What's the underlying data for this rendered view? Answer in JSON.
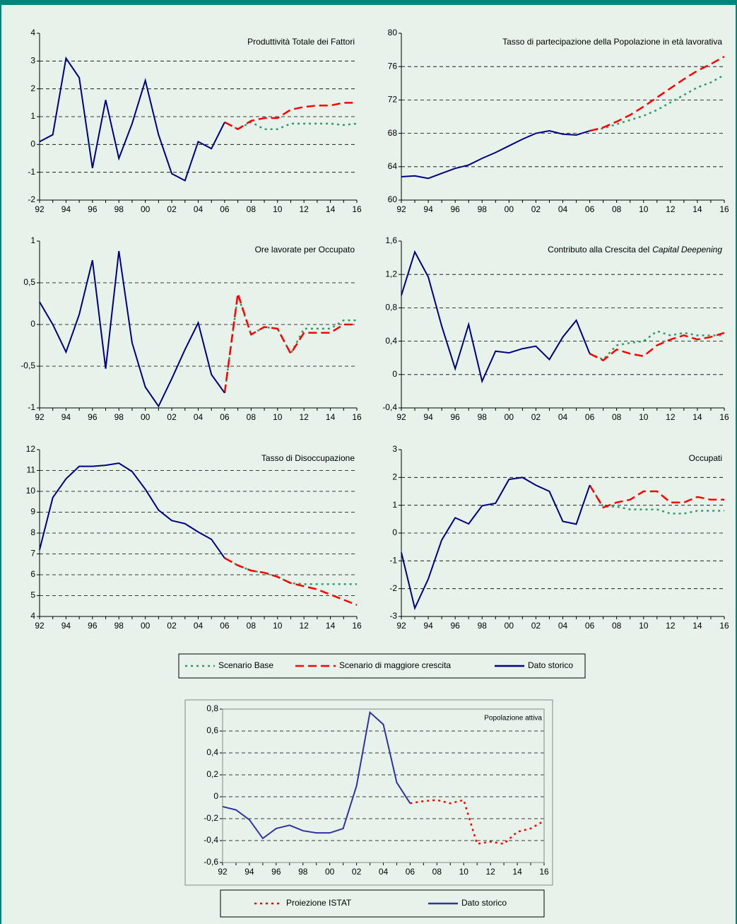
{
  "chart_data": [
    {
      "type": "line",
      "title": "Produttività Totale dei Fattori",
      "categories": [
        "92",
        null,
        "94",
        null,
        "96",
        null,
        "98",
        null,
        "00",
        null,
        "02",
        null,
        "04",
        null,
        "06",
        null,
        "08",
        null,
        "10",
        null,
        "12",
        null,
        "14",
        null,
        "16"
      ],
      "ylim": [
        -2,
        4
      ],
      "yticks": [
        -2,
        -1,
        0,
        1,
        2,
        3,
        4
      ],
      "grid": true,
      "series": [
        {
          "name": "Scenario Base",
          "color": "#339966",
          "dash": "dotted",
          "values": [
            null,
            null,
            null,
            null,
            null,
            null,
            null,
            null,
            null,
            null,
            null,
            null,
            null,
            null,
            0.8,
            0.55,
            0.8,
            0.55,
            0.55,
            0.75,
            0.75,
            0.75,
            0.75,
            0.7,
            0.75
          ]
        },
        {
          "name": "Scenario di maggiore crescita",
          "color": "#ff0000",
          "dash": "dashed",
          "values": [
            null,
            null,
            null,
            null,
            null,
            null,
            null,
            null,
            null,
            null,
            null,
            null,
            null,
            null,
            0.8,
            0.55,
            0.85,
            0.95,
            0.95,
            1.25,
            1.35,
            1.4,
            1.4,
            1.5,
            1.5
          ]
        },
        {
          "name": "Dato storico",
          "color": "#000080",
          "dash": "solid",
          "values": [
            0.1,
            0.35,
            3.1,
            2.4,
            -0.85,
            1.6,
            -0.5,
            0.75,
            2.3,
            0.35,
            -1.05,
            -1.3,
            0.1,
            -0.15,
            0.8,
            null,
            null,
            null,
            null,
            null,
            null,
            null,
            null,
            null,
            null
          ]
        }
      ]
    },
    {
      "type": "line",
      "title": "Tasso di partecipazione della Popolazione in età lavorativa",
      "categories": [
        "92",
        null,
        "94",
        null,
        "96",
        null,
        "98",
        null,
        "00",
        null,
        "02",
        null,
        "04",
        null,
        "06",
        null,
        "08",
        null,
        "10",
        null,
        "12",
        null,
        "14",
        null,
        "16"
      ],
      "ylim": [
        60,
        80
      ],
      "yticks": [
        60,
        64,
        68,
        72,
        76,
        80
      ],
      "grid": true,
      "series": [
        {
          "name": "Scenario Base",
          "color": "#339966",
          "dash": "dotted",
          "values": [
            null,
            null,
            null,
            null,
            null,
            null,
            null,
            null,
            null,
            null,
            null,
            null,
            null,
            null,
            68.3,
            68.6,
            69.1,
            69.6,
            70.1,
            70.8,
            71.7,
            72.6,
            73.5,
            74.1,
            75.0
          ]
        },
        {
          "name": "Scenario di maggiore crescita",
          "color": "#ff0000",
          "dash": "dashed",
          "values": [
            null,
            null,
            null,
            null,
            null,
            null,
            null,
            null,
            null,
            null,
            null,
            null,
            null,
            null,
            68.3,
            68.7,
            69.4,
            70.2,
            71.2,
            72.3,
            73.4,
            74.5,
            75.5,
            76.3,
            77.2
          ]
        },
        {
          "name": "Dato storico",
          "color": "#000080",
          "dash": "solid",
          "values": [
            62.8,
            62.9,
            62.6,
            63.2,
            63.8,
            64.2,
            65.0,
            65.7,
            66.5,
            67.3,
            68.0,
            68.3,
            67.9,
            67.8,
            68.3,
            null,
            null,
            null,
            null,
            null,
            null,
            null,
            null,
            null,
            null
          ]
        }
      ]
    },
    {
      "type": "line",
      "title": "Ore lavorate per Occupato",
      "categories": [
        "92",
        null,
        "94",
        null,
        "96",
        null,
        "98",
        null,
        "00",
        null,
        "02",
        null,
        "04",
        null,
        "06",
        null,
        "08",
        null,
        "10",
        null,
        "12",
        null,
        "14",
        null,
        "16"
      ],
      "ylim": [
        -1,
        1
      ],
      "yticks": [
        -1,
        {
          "value": -0.5,
          "label": "-0,5"
        },
        0,
        {
          "value": 0.5,
          "label": "0,5"
        },
        1
      ],
      "grid": true,
      "series": [
        {
          "name": "Scenario Base",
          "color": "#339966",
          "dash": "dotted",
          "values": [
            null,
            null,
            null,
            null,
            null,
            null,
            null,
            null,
            null,
            null,
            null,
            null,
            null,
            null,
            -0.82,
            0.35,
            -0.12,
            -0.03,
            -0.05,
            -0.35,
            -0.05,
            -0.05,
            -0.05,
            0.05,
            0.05
          ]
        },
        {
          "name": "Scenario di maggiore crescita",
          "color": "#ff0000",
          "dash": "dashed",
          "values": [
            null,
            null,
            null,
            null,
            null,
            null,
            null,
            null,
            null,
            null,
            null,
            null,
            null,
            null,
            -0.82,
            0.37,
            -0.12,
            -0.03,
            -0.05,
            -0.35,
            -0.1,
            -0.1,
            -0.1,
            0,
            0
          ]
        },
        {
          "name": "Dato storico",
          "color": "#000080",
          "dash": "solid",
          "values": [
            0.27,
            0,
            -0.33,
            0.12,
            0.77,
            -0.53,
            0.88,
            -0.22,
            -0.75,
            -0.98,
            -0.65,
            -0.3,
            0.02,
            -0.6,
            -0.82,
            null,
            null,
            null,
            null,
            null,
            null,
            null,
            null,
            null,
            null
          ]
        }
      ]
    },
    {
      "type": "line",
      "title_parts": [
        {
          "text": "Contributo alla Crescita del"
        },
        {
          "text": "Capital Deepening",
          "italic": true
        }
      ],
      "categories": [
        "92",
        null,
        "94",
        null,
        "96",
        null,
        "98",
        null,
        "00",
        null,
        "02",
        null,
        "04",
        null,
        "06",
        null,
        "08",
        null,
        "10",
        null,
        "12",
        null,
        "14",
        null,
        "16"
      ],
      "ylim": [
        -0.4,
        1.6
      ],
      "yticks": [
        {
          "value": -0.4,
          "label": "-0,4"
        },
        0,
        {
          "value": 0.4,
          "label": "0,4"
        },
        {
          "value": 0.8,
          "label": "0,8"
        },
        {
          "value": 1.2,
          "label": "1,2"
        },
        {
          "value": 1.6,
          "label": "1,6"
        }
      ],
      "grid": true,
      "series": [
        {
          "name": "Scenario Base",
          "color": "#339966",
          "dash": "dotted",
          "values": [
            null,
            null,
            null,
            null,
            null,
            null,
            null,
            null,
            null,
            null,
            null,
            null,
            null,
            null,
            0.25,
            0.18,
            0.35,
            0.38,
            0.4,
            0.52,
            0.47,
            0.5,
            0.47,
            0.47,
            0.47
          ]
        },
        {
          "name": "Scenario di maggiore crescita",
          "color": "#ff0000",
          "dash": "dashed",
          "values": [
            null,
            null,
            null,
            null,
            null,
            null,
            null,
            null,
            null,
            null,
            null,
            null,
            null,
            null,
            0.25,
            0.17,
            0.3,
            0.25,
            0.22,
            0.35,
            0.42,
            0.47,
            0.42,
            0.45,
            0.5
          ]
        },
        {
          "name": "Dato storico",
          "color": "#000080",
          "dash": "solid",
          "values": [
            0.95,
            1.47,
            1.17,
            0.58,
            0.07,
            0.6,
            -0.08,
            0.28,
            0.26,
            0.31,
            0.34,
            0.18,
            0.45,
            0.65,
            0.25,
            null,
            null,
            null,
            null,
            null,
            null,
            null,
            null,
            null,
            null
          ]
        }
      ]
    },
    {
      "type": "line",
      "title": "Tasso di Disoccupazione",
      "categories": [
        "92",
        null,
        "94",
        null,
        "96",
        null,
        "98",
        null,
        "00",
        null,
        "02",
        null,
        "04",
        null,
        "06",
        null,
        "08",
        null,
        "10",
        null,
        "12",
        null,
        "14",
        null,
        "16"
      ],
      "ylim": [
        4,
        12
      ],
      "yticks": [
        4,
        5,
        6,
        7,
        8,
        9,
        10,
        11,
        12
      ],
      "grid": true,
      "series": [
        {
          "name": "Scenario Base",
          "color": "#339966",
          "dash": "dotted",
          "values": [
            null,
            null,
            null,
            null,
            null,
            null,
            null,
            null,
            null,
            null,
            null,
            null,
            null,
            null,
            6.8,
            6.45,
            6.2,
            6.1,
            5.9,
            5.6,
            5.55,
            5.55,
            5.55,
            5.55,
            5.55
          ]
        },
        {
          "name": "Scenario di maggiore crescita",
          "color": "#ff0000",
          "dash": "dashed",
          "values": [
            null,
            null,
            null,
            null,
            null,
            null,
            null,
            null,
            null,
            null,
            null,
            null,
            null,
            null,
            6.8,
            6.45,
            6.2,
            6.1,
            5.9,
            5.6,
            5.45,
            5.3,
            5.05,
            4.8,
            4.55
          ]
        },
        {
          "name": "Dato storico",
          "color": "#000080",
          "dash": "solid",
          "values": [
            7.2,
            9.7,
            10.6,
            11.2,
            11.2,
            11.25,
            11.35,
            10.95,
            10.1,
            9.1,
            8.6,
            8.45,
            8.05,
            7.7,
            6.8,
            null,
            null,
            null,
            null,
            null,
            null,
            null,
            null,
            null,
            null
          ]
        }
      ]
    },
    {
      "type": "line",
      "title": "Occupati",
      "categories": [
        "92",
        null,
        "94",
        null,
        "96",
        null,
        "98",
        null,
        "00",
        null,
        "02",
        null,
        "04",
        null,
        "06",
        null,
        "08",
        null,
        "10",
        null,
        "12",
        null,
        "14",
        null,
        "16"
      ],
      "ylim": [
        -3,
        3
      ],
      "yticks": [
        -3,
        -2,
        -1,
        0,
        1,
        2,
        3
      ],
      "grid": true,
      "series": [
        {
          "name": "Scenario Base",
          "color": "#339966",
          "dash": "dotted",
          "values": [
            null,
            null,
            null,
            null,
            null,
            null,
            null,
            null,
            null,
            null,
            null,
            null,
            null,
            null,
            1.72,
            0.95,
            0.95,
            0.85,
            0.85,
            0.85,
            0.7,
            0.7,
            0.8,
            0.8,
            0.8
          ]
        },
        {
          "name": "Scenario di maggiore crescita",
          "color": "#ff0000",
          "dash": "dashed",
          "values": [
            null,
            null,
            null,
            null,
            null,
            null,
            null,
            null,
            null,
            null,
            null,
            null,
            null,
            null,
            1.72,
            0.92,
            1.1,
            1.2,
            1.5,
            1.5,
            1.1,
            1.1,
            1.3,
            1.2,
            1.2
          ]
        },
        {
          "name": "Dato storico",
          "color": "#000080",
          "dash": "solid",
          "values": [
            -0.7,
            -2.7,
            -1.65,
            -0.25,
            0.55,
            0.33,
            0.98,
            1.07,
            1.93,
            2.0,
            1.72,
            1.5,
            0.42,
            0.32,
            1.72,
            null,
            null,
            null,
            null,
            null,
            null,
            null,
            null,
            null,
            null
          ]
        }
      ]
    },
    {
      "type": "line",
      "title": "Popolazione attiva",
      "categories": [
        "92",
        null,
        "94",
        null,
        "96",
        null,
        "98",
        null,
        "00",
        null,
        "02",
        null,
        "04",
        null,
        "06",
        null,
        "08",
        null,
        "10",
        null,
        "12",
        null,
        "14",
        null,
        "16"
      ],
      "ylim": [
        -0.6,
        0.8
      ],
      "yticks": [
        {
          "value": -0.6,
          "label": "-0,6"
        },
        {
          "value": -0.4,
          "label": "-0,4"
        },
        {
          "value": -0.2,
          "label": "-0,2"
        },
        0,
        {
          "value": 0.2,
          "label": "0,2"
        },
        {
          "value": 0.4,
          "label": "0,4"
        },
        {
          "value": 0.6,
          "label": "0,6"
        },
        {
          "value": 0.8,
          "label": "0,8"
        }
      ],
      "grid": true,
      "series": [
        {
          "name": "Proiezione ISTAT",
          "color": "#ff0000",
          "dash": "dotted",
          "values": [
            null,
            null,
            null,
            null,
            null,
            null,
            null,
            null,
            null,
            null,
            null,
            null,
            null,
            null,
            -0.06,
            -0.04,
            -0.03,
            -0.06,
            -0.03,
            -0.43,
            -0.41,
            -0.43,
            -0.32,
            -0.29,
            -0.22
          ]
        },
        {
          "name": "Dato storico",
          "color": "#3333a0",
          "dash": "solid",
          "values": [
            -0.09,
            -0.12,
            -0.21,
            -0.38,
            -0.29,
            -0.26,
            -0.31,
            -0.33,
            -0.33,
            -0.29,
            0.1,
            0.77,
            0.66,
            0.13,
            -0.06,
            null,
            null,
            null,
            null,
            null,
            null,
            null,
            null,
            null,
            null
          ]
        }
      ]
    }
  ]
}
